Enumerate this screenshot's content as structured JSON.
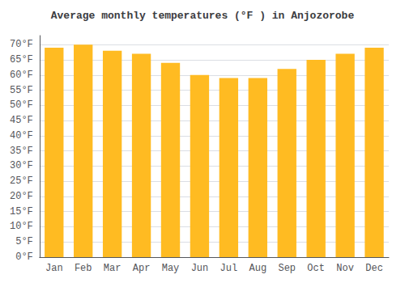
{
  "chart_data": {
    "type": "bar",
    "title": "Average monthly temperatures (°F ) in Anjozorobe",
    "categories": [
      "Jan",
      "Feb",
      "Mar",
      "Apr",
      "May",
      "Jun",
      "Jul",
      "Aug",
      "Sep",
      "Oct",
      "Nov",
      "Dec"
    ],
    "values": [
      69,
      70,
      68,
      67,
      64,
      60,
      59,
      59,
      62,
      65,
      67,
      69
    ],
    "color": "#FFBB22",
    "ylim": [
      0,
      73
    ],
    "yticks": [
      {
        "value": 0,
        "label": "0°F"
      },
      {
        "value": 5,
        "label": "5°F"
      },
      {
        "value": 10,
        "label": "10°F"
      },
      {
        "value": 15,
        "label": "15°F"
      },
      {
        "value": 20,
        "label": "20°F"
      },
      {
        "value": 25,
        "label": "25°F"
      },
      {
        "value": 30,
        "label": "30°F"
      },
      {
        "value": 35,
        "label": "35°F"
      },
      {
        "value": 40,
        "label": "40°F"
      },
      {
        "value": 45,
        "label": "45°F"
      },
      {
        "value": 50,
        "label": "50°F"
      },
      {
        "value": 55,
        "label": "55°F"
      },
      {
        "value": 60,
        "label": "60°F"
      },
      {
        "value": 65,
        "label": "65°F"
      },
      {
        "value": 70,
        "label": "70°F"
      }
    ],
    "grid": true
  }
}
